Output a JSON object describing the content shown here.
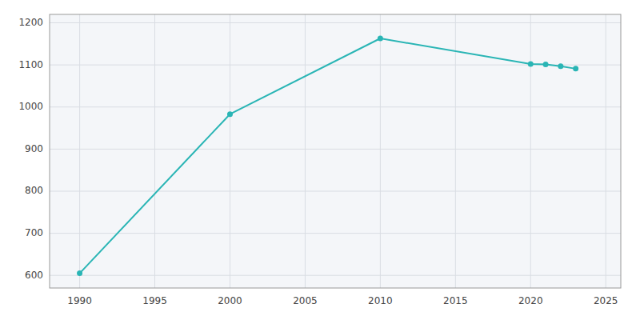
{
  "chart_data": {
    "type": "line",
    "x": [
      1990,
      2000,
      2010,
      2020,
      2021,
      2022,
      2023
    ],
    "values": [
      605,
      983,
      1163,
      1102,
      1101,
      1097,
      1091
    ],
    "color": "#2ab5b5",
    "marker": "circle",
    "xlim": [
      1988,
      2026
    ],
    "ylim": [
      570,
      1220
    ],
    "xticks": [
      1990,
      1995,
      2000,
      2005,
      2010,
      2015,
      2020,
      2025
    ],
    "yticks": [
      600,
      700,
      800,
      900,
      1000,
      1100,
      1200
    ],
    "grid": true
  }
}
